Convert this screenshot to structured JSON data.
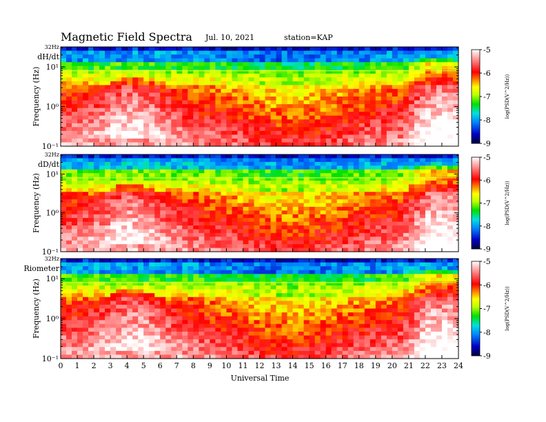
{
  "header": {
    "title": "Magnetic  Field  Spectra",
    "date": "Jul.  10,  2021",
    "station": "station=KAP"
  },
  "chart_data": [
    {
      "type": "heatmap",
      "panel_label": "dH/dt",
      "ylabel": "Frequency  (Hz)",
      "xlabel": "",
      "xlim": [
        0,
        24
      ],
      "ylim": [
        0.1,
        32
      ],
      "y_scale": "log",
      "y_top_label": "32Hz",
      "y_tick_labels": [
        "10¹",
        "10⁰",
        "10⁻¹"
      ],
      "colorbar": {
        "label": "log(PSD(V^2/Hz))",
        "range": [
          -9,
          -5
        ],
        "ticks": [
          "-5",
          "-6",
          "-7",
          "-8",
          "-9"
        ]
      }
    },
    {
      "type": "heatmap",
      "panel_label": "dD/dt",
      "ylabel": "Frequency  (Hz)",
      "xlabel": "",
      "xlim": [
        0,
        24
      ],
      "ylim": [
        0.1,
        32
      ],
      "y_scale": "log",
      "y_top_label": "32Hz",
      "y_tick_labels": [
        "10¹",
        "10⁰",
        "10⁻¹"
      ],
      "colorbar": {
        "label": "log(PSD(V^2/Hz))",
        "range": [
          -9,
          -5
        ],
        "ticks": [
          "-5",
          "-6",
          "-7",
          "-8",
          "-9"
        ]
      }
    },
    {
      "type": "heatmap",
      "panel_label": "Riometer",
      "ylabel": "Frequency  (Hz)",
      "xlabel": "Universal Time",
      "xlim": [
        0,
        24
      ],
      "ylim": [
        0.1,
        32
      ],
      "y_scale": "log",
      "y_top_label": "32Hz",
      "y_tick_labels": [
        "10¹",
        "10⁰",
        "10⁻¹"
      ],
      "x_tick_labels": [
        "0",
        "1",
        "2",
        "3",
        "4",
        "5",
        "6",
        "7",
        "8",
        "9",
        "10",
        "11",
        "12",
        "13",
        "14",
        "15",
        "16",
        "17",
        "18",
        "19",
        "20",
        "21",
        "22",
        "23",
        "24"
      ],
      "colorbar": {
        "label": "log(PSD(V^2/Hz))",
        "range": [
          -9,
          -5
        ],
        "ticks": [
          "-5",
          "-6",
          "-7",
          "-8",
          "-9"
        ]
      }
    }
  ],
  "colors": {
    "scale": [
      "#000040",
      "#0000c8",
      "#0080ff",
      "#00e0e0",
      "#00e000",
      "#ffff00",
      "#ff8000",
      "#ff0000",
      "#ff8080",
      "#ffffff"
    ]
  }
}
